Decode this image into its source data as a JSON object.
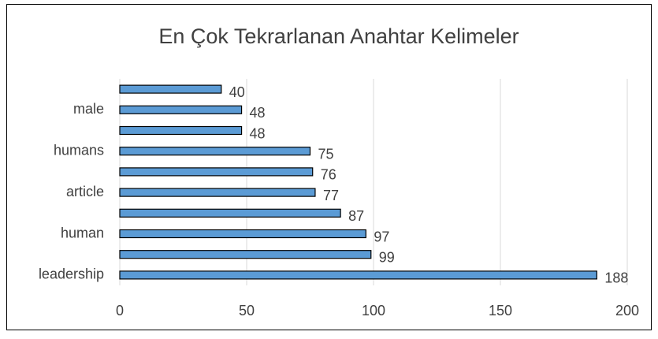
{
  "chart_data": {
    "type": "hbar",
    "title": "En Çok Tekrarlanan Anahtar Kelimeler",
    "categories": [
      "leadership",
      null,
      "human",
      null,
      "article",
      null,
      "humans",
      null,
      "male",
      null
    ],
    "values": [
      188,
      99,
      97,
      87,
      77,
      76,
      75,
      48,
      48,
      40
    ],
    "color": "#5b9bd5",
    "xlim": [
      0,
      200
    ],
    "xticks": [
      0,
      50,
      100,
      150,
      200
    ],
    "grid": true
  }
}
